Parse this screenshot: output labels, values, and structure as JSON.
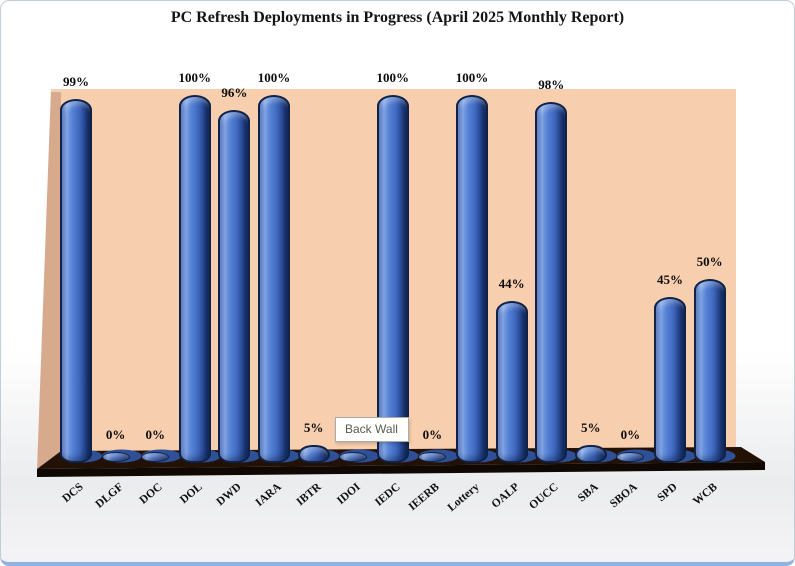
{
  "chart_data": {
    "type": "bar",
    "style": "3d-cylinder",
    "title": "PC Refresh Deployments in Progress (April 2025 Monthly Report)",
    "categories": [
      "DCS",
      "DLGF",
      "DOC",
      "DOL",
      "DWD",
      "IARA",
      "IBTR",
      "IDOI",
      "IEDC",
      "IEERB",
      "Lottery",
      "OALP",
      "OUCC",
      "SBA",
      "SBOA",
      "SPD",
      "WCB"
    ],
    "values": [
      99,
      0,
      0,
      100,
      96,
      100,
      5,
      0,
      100,
      0,
      100,
      44,
      98,
      5,
      0,
      45,
      50
    ],
    "data_labels": [
      "99%",
      "0%",
      "0%",
      "100%",
      "96%",
      "100%",
      "5%",
      "",
      "100%",
      "0%",
      "100%",
      "44%",
      "98%",
      "5%",
      "0%",
      "45%",
      "50%"
    ],
    "ylim": [
      0,
      100
    ],
    "legend": "none",
    "gridlines": false,
    "value_axis_visible": false,
    "colors": {
      "bar": "#4472c4",
      "bar_dark_edge": "#16316e",
      "bar_outline": "#0f2348",
      "back_wall": "#f8cfae",
      "side_wall": "#d7aa8d",
      "floor": "#241106",
      "floor_front": "#0f0803",
      "label_text": "#0c0c0c"
    }
  },
  "tooltip": {
    "label": "Back Wall"
  }
}
